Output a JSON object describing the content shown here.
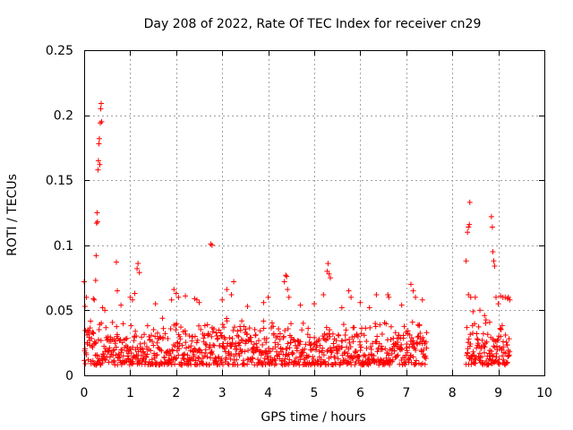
{
  "chart_data": {
    "type": "scatter",
    "title": "Day 208 of 2022, Rate Of TEC Index for receiver cn29",
    "xlabel": "GPS time / hours",
    "ylabel": "ROTI / TECUs",
    "xlim": [
      0,
      10
    ],
    "ylim": [
      0,
      0.25
    ],
    "xticks": [
      "0",
      "1",
      "2",
      "3",
      "4",
      "5",
      "6",
      "7",
      "8",
      "9",
      "10"
    ],
    "yticks": [
      "0",
      "0.05",
      "0.1",
      "0.15",
      "0.2",
      "0.25"
    ],
    "grid": true,
    "marker": "+",
    "color": "#ff0000",
    "series": [
      {
        "name": "ROTI",
        "segments": [
          {
            "x_start": 0.0,
            "x_end": 7.45,
            "y_min": 0.008,
            "y_max": 0.045
          },
          {
            "x_start": 8.3,
            "x_end": 9.25,
            "y_min": 0.008,
            "y_max": 0.045
          }
        ],
        "points": [
          [
            0.0,
            0.072
          ],
          [
            0.02,
            0.053
          ],
          [
            0.05,
            0.06
          ],
          [
            0.2,
            0.059
          ],
          [
            0.22,
            0.058
          ],
          [
            0.25,
            0.073
          ],
          [
            0.26,
            0.092
          ],
          [
            0.27,
            0.117
          ],
          [
            0.28,
            0.125
          ],
          [
            0.29,
            0.118
          ],
          [
            0.3,
            0.158
          ],
          [
            0.31,
            0.165
          ],
          [
            0.32,
            0.178
          ],
          [
            0.33,
            0.182
          ],
          [
            0.34,
            0.162
          ],
          [
            0.35,
            0.194
          ],
          [
            0.36,
            0.205
          ],
          [
            0.37,
            0.209
          ],
          [
            0.38,
            0.195
          ],
          [
            0.4,
            0.052
          ],
          [
            0.45,
            0.05
          ],
          [
            0.7,
            0.087
          ],
          [
            0.72,
            0.065
          ],
          [
            0.8,
            0.054
          ],
          [
            1.0,
            0.06
          ],
          [
            1.05,
            0.058
          ],
          [
            1.1,
            0.063
          ],
          [
            1.15,
            0.082
          ],
          [
            1.17,
            0.086
          ],
          [
            1.2,
            0.079
          ],
          [
            1.55,
            0.055
          ],
          [
            1.9,
            0.058
          ],
          [
            1.95,
            0.066
          ],
          [
            2.0,
            0.063
          ],
          [
            2.05,
            0.06
          ],
          [
            2.2,
            0.061
          ],
          [
            2.4,
            0.059
          ],
          [
            2.45,
            0.058
          ],
          [
            2.5,
            0.056
          ],
          [
            2.75,
            0.101
          ],
          [
            2.78,
            0.1
          ],
          [
            3.0,
            0.058
          ],
          [
            3.1,
            0.066
          ],
          [
            3.25,
            0.072
          ],
          [
            3.2,
            0.062
          ],
          [
            3.55,
            0.053
          ],
          [
            3.9,
            0.056
          ],
          [
            4.0,
            0.06
          ],
          [
            4.35,
            0.072
          ],
          [
            4.38,
            0.077
          ],
          [
            4.4,
            0.076
          ],
          [
            4.42,
            0.066
          ],
          [
            4.45,
            0.06
          ],
          [
            4.7,
            0.054
          ],
          [
            5.0,
            0.055
          ],
          [
            5.2,
            0.062
          ],
          [
            5.28,
            0.08
          ],
          [
            5.3,
            0.086
          ],
          [
            5.32,
            0.078
          ],
          [
            5.35,
            0.075
          ],
          [
            5.6,
            0.052
          ],
          [
            5.75,
            0.065
          ],
          [
            5.8,
            0.06
          ],
          [
            6.0,
            0.056
          ],
          [
            6.2,
            0.052
          ],
          [
            6.35,
            0.062
          ],
          [
            6.6,
            0.062
          ],
          [
            6.62,
            0.06
          ],
          [
            6.9,
            0.054
          ],
          [
            7.1,
            0.07
          ],
          [
            7.15,
            0.065
          ],
          [
            7.2,
            0.06
          ],
          [
            7.35,
            0.058
          ],
          [
            8.3,
            0.088
          ],
          [
            8.33,
            0.11
          ],
          [
            8.35,
            0.114
          ],
          [
            8.37,
            0.116
          ],
          [
            8.38,
            0.133
          ],
          [
            8.35,
            0.062
          ],
          [
            8.4,
            0.06
          ],
          [
            8.45,
            0.049
          ],
          [
            8.5,
            0.06
          ],
          [
            8.6,
            0.05
          ],
          [
            8.7,
            0.046
          ],
          [
            8.85,
            0.122
          ],
          [
            8.87,
            0.114
          ],
          [
            8.88,
            0.095
          ],
          [
            8.9,
            0.088
          ],
          [
            8.92,
            0.084
          ],
          [
            8.95,
            0.06
          ],
          [
            9.0,
            0.055
          ],
          [
            9.05,
            0.061
          ],
          [
            9.1,
            0.06
          ],
          [
            9.15,
            0.06
          ],
          [
            9.2,
            0.059
          ],
          [
            9.22,
            0.06
          ],
          [
            9.25,
            0.058
          ]
        ]
      }
    ]
  }
}
